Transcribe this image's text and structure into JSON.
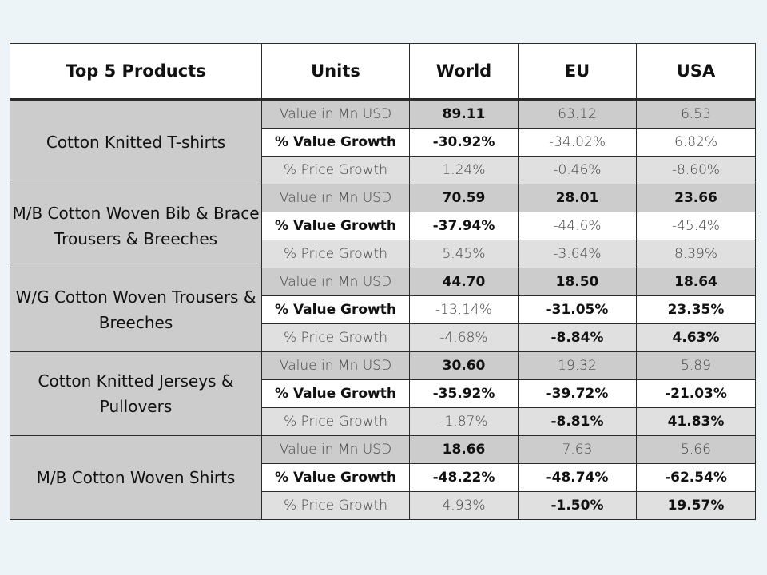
{
  "table": {
    "headers": [
      "Top 5 Products",
      "Units",
      "World",
      "EU",
      "USA"
    ],
    "groups": [
      {
        "product": "Cotton Knitted  T-shirts",
        "rows": [
          {
            "metric": "Value in Mn USD",
            "world": "89.11",
            "eu": "63.12",
            "usa": "6.53"
          },
          {
            "metric": "% Value Growth",
            "world": "-30.92%",
            "eu": "-34.02%",
            "usa": "6.82%"
          },
          {
            "metric": "% Price Growth",
            "world": "1.24%",
            "eu": "-0.46%",
            "usa": "-8.60%"
          }
        ]
      },
      {
        "product": "M/B Cotton Woven Bib & Brace Trousers & Breeches",
        "rows": [
          {
            "metric": "Value in Mn USD",
            "world": "70.59",
            "eu": "28.01",
            "usa": "23.66"
          },
          {
            "metric": "% Value Growth",
            "world": "-37.94%",
            "eu": "-44.6%",
            "usa": "-45.4%"
          },
          {
            "metric": "% Price Growth",
            "world": "5.45%",
            "eu": "-3.64%",
            "usa": "8.39%"
          }
        ]
      },
      {
        "product": "W/G Cotton Woven Trousers & Breeches",
        "rows": [
          {
            "metric": "Value in Mn USD",
            "world": "44.70",
            "eu": "18.50",
            "usa": "18.64"
          },
          {
            "metric": "% Value Growth",
            "world": "-13.14%",
            "eu": "-31.05%",
            "usa": "23.35%"
          },
          {
            "metric": "% Price Growth",
            "world": "-4.68%",
            "eu": "-8.84%",
            "usa": "4.63%"
          }
        ]
      },
      {
        "product": "Cotton Knitted  Jerseys & Pullovers",
        "rows": [
          {
            "metric": "Value in Mn USD",
            "world": "30.60",
            "eu": "19.32",
            "usa": "5.89"
          },
          {
            "metric": "% Value Growth",
            "world": "-35.92%",
            "eu": "-39.72%",
            "usa": "-21.03%"
          },
          {
            "metric": "% Price Growth",
            "world": "-1.87%",
            "eu": "-8.81%",
            "usa": "41.83%"
          }
        ]
      },
      {
        "product": "M/B Cotton Woven  Shirts",
        "rows": [
          {
            "metric": "Value in Mn USD",
            "world": "18.66",
            "eu": "7.63",
            "usa": "5.66"
          },
          {
            "metric": "% Value Growth",
            "world": "-48.22%",
            "eu": "-48.74%",
            "usa": "-62.54%"
          },
          {
            "metric": "% Price Growth",
            "world": "4.93%",
            "eu": "-1.50%",
            "usa": "19.57%"
          }
        ]
      }
    ]
  }
}
